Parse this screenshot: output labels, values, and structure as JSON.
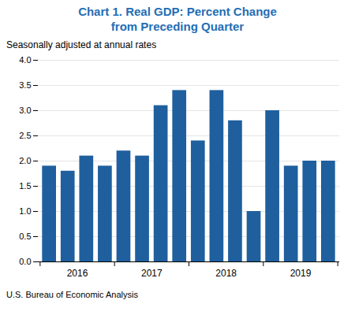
{
  "chart_data": {
    "type": "bar",
    "title": "Chart 1. Real GDP: Percent Change\nfrom Preceding Quarter",
    "title_color": "#1f6eb5",
    "subtitle": "Seasonally adjusted at annual rates",
    "footer": "U.S. Bureau of Economic Analysis",
    "categories": [
      null,
      null,
      null,
      null,
      null,
      null,
      null,
      null,
      null,
      null,
      null,
      null,
      null,
      null,
      null,
      null
    ],
    "group_labels": [
      "2016",
      "2017",
      "2018",
      "2019"
    ],
    "values": [
      1.9,
      1.8,
      2.1,
      1.9,
      2.2,
      2.1,
      3.1,
      3.4,
      2.4,
      3.4,
      2.8,
      1.0,
      3.0,
      1.9,
      2.0,
      2.0
    ],
    "color": "#1f5f9e",
    "ylim": [
      0,
      4.0
    ],
    "yticks": [
      {
        "value": 0,
        "label": "0.0"
      },
      0.5,
      {
        "value": 1.0,
        "label": "1.0"
      },
      1.5,
      {
        "value": 2.0,
        "label": "2.0"
      },
      2.5,
      {
        "value": 3.0,
        "label": "3.0"
      },
      3.5,
      {
        "value": 4.0,
        "label": "4.0"
      }
    ],
    "grid": true
  }
}
